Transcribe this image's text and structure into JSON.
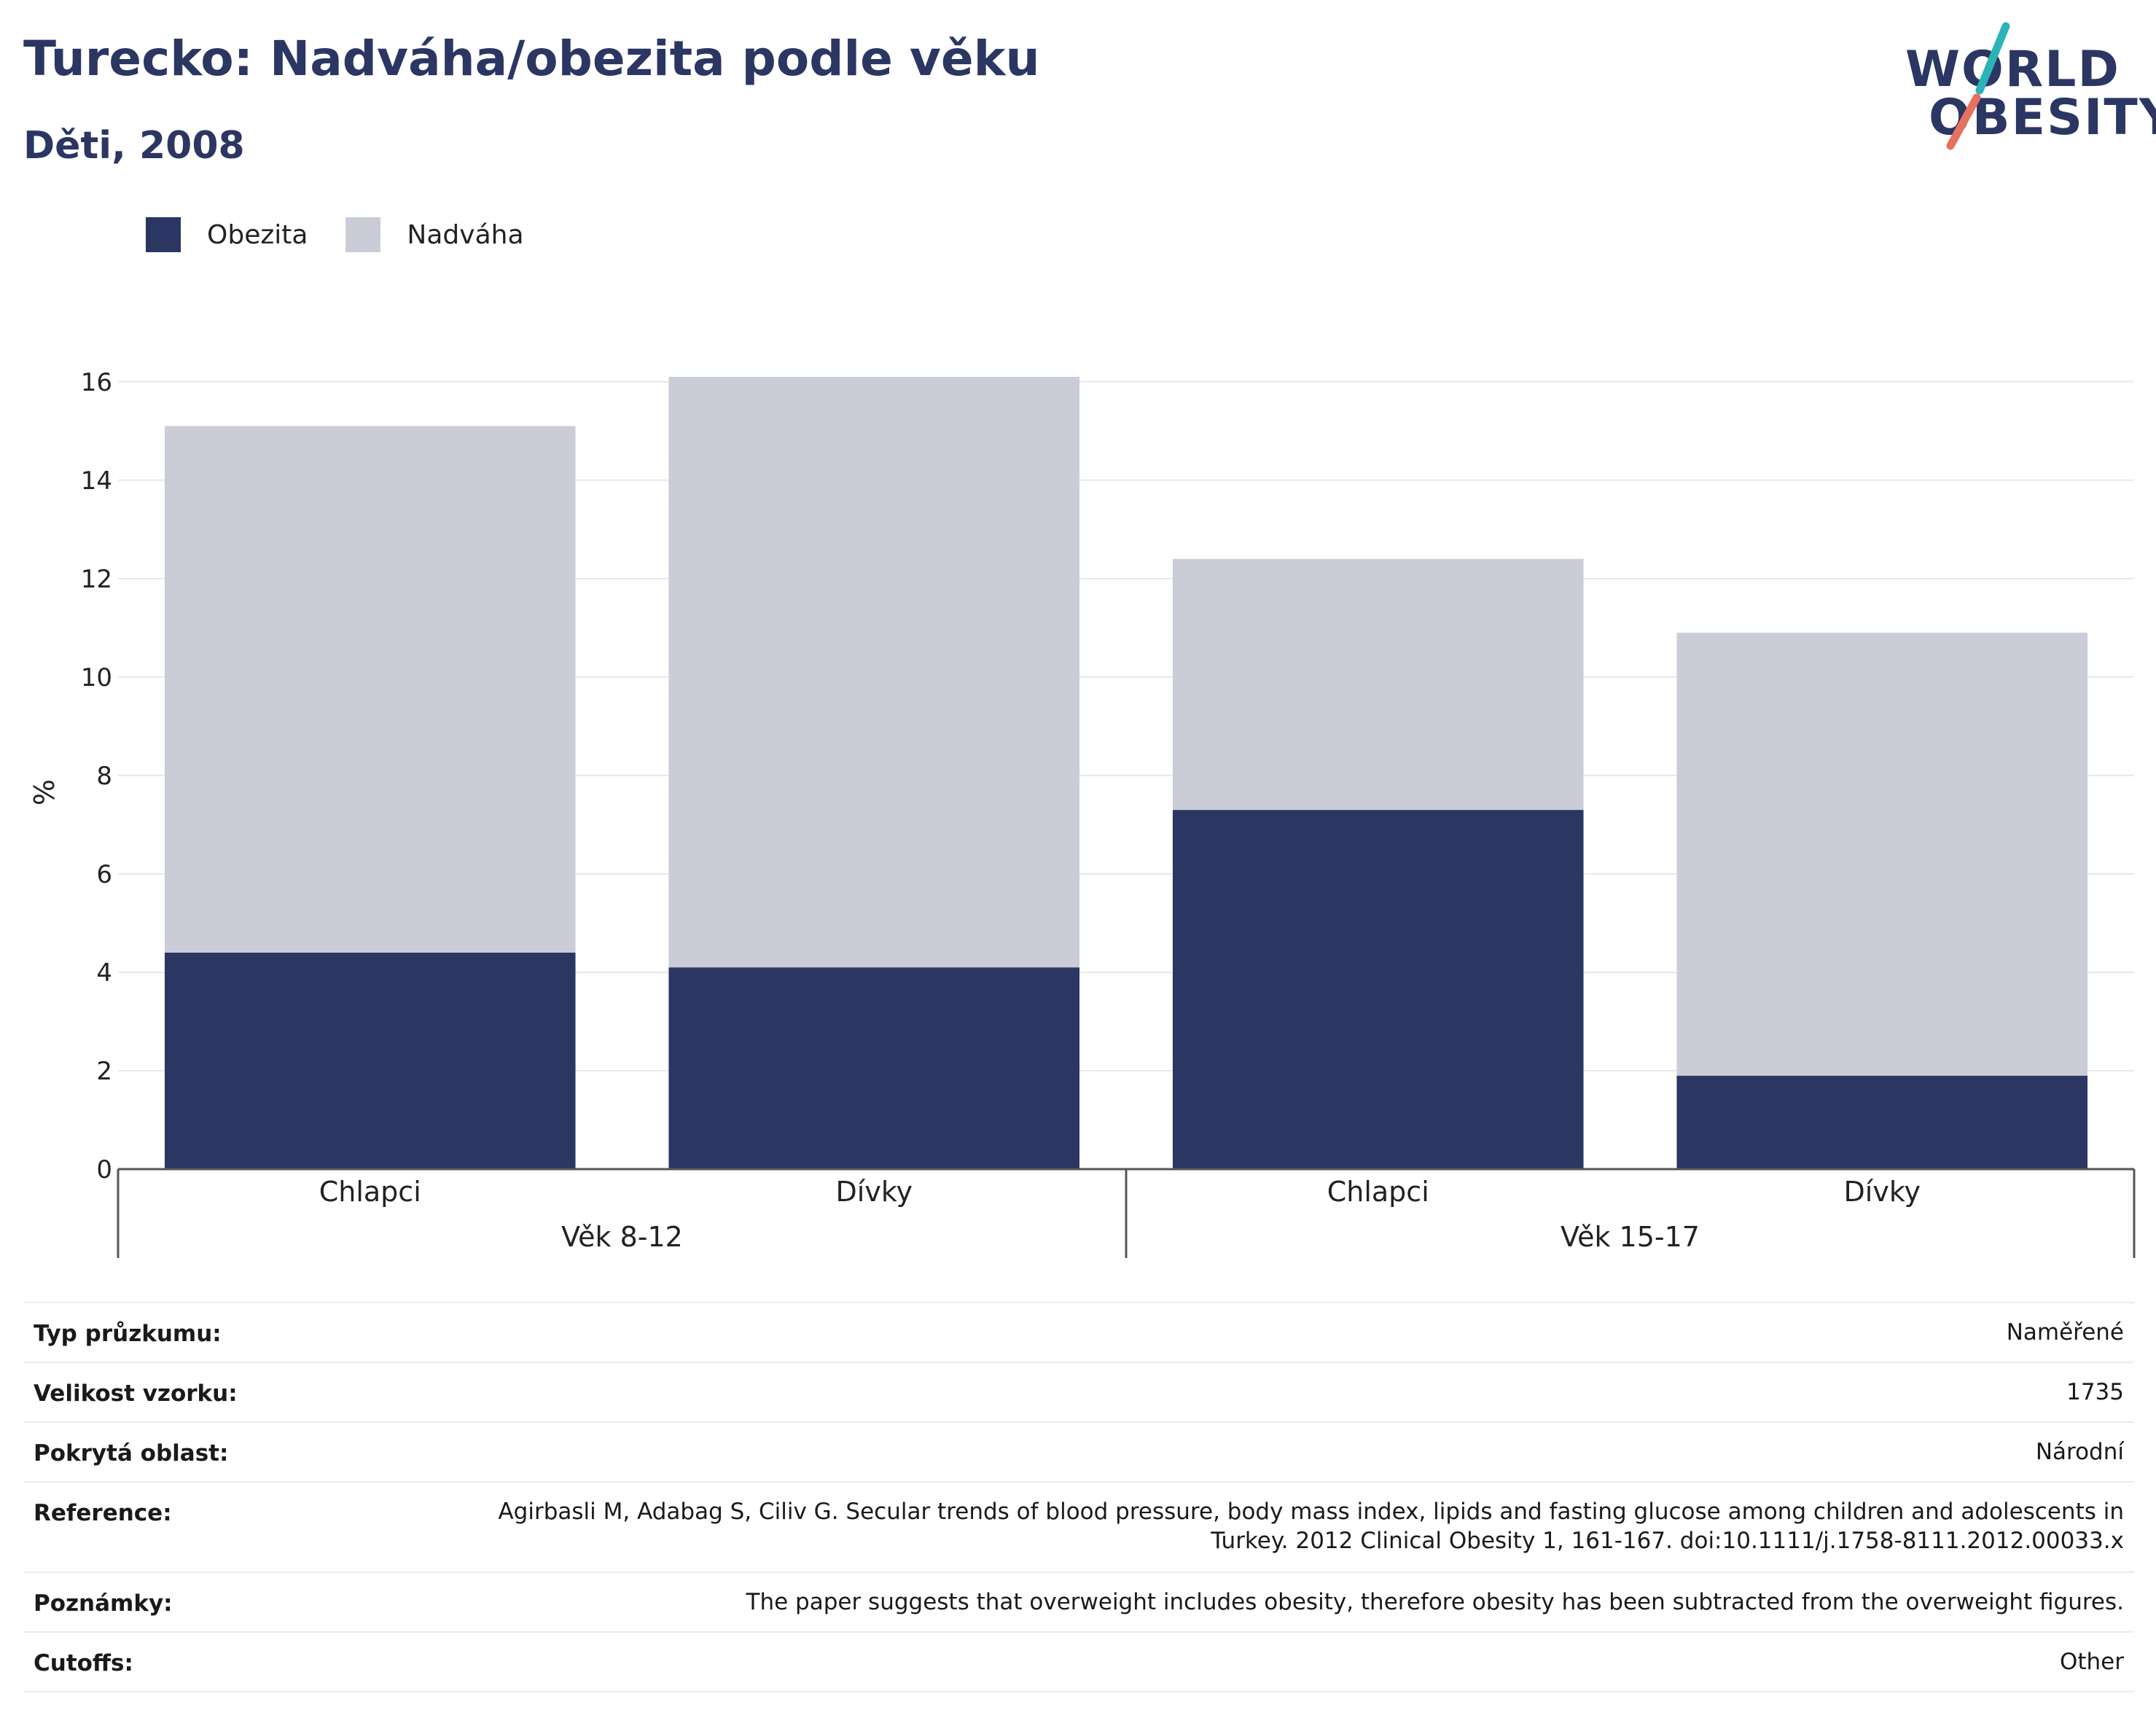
{
  "header": {
    "title": "Turecko: Nadváha/obezita podle věku",
    "subtitle": "Děti, 2008"
  },
  "logo": {
    "line1": "WORLD",
    "line2": "OBESITY",
    "colors": {
      "text": "#2b3663",
      "stroke_top": "#2bb3b8",
      "stroke_bottom": "#e8705f"
    }
  },
  "chart_data": {
    "type": "bar",
    "stacked": true,
    "title": "",
    "ylabel": "%",
    "ylim": [
      0,
      16.5
    ],
    "yticks": [
      0,
      2,
      4,
      6,
      8,
      10,
      12,
      14,
      16
    ],
    "grid": true,
    "legend_position": "top-left",
    "categories": [
      "Chlapci",
      "Dívky",
      "Chlapci",
      "Dívky"
    ],
    "groups": [
      {
        "label": "Věk 8-12",
        "categories": [
          0,
          1
        ]
      },
      {
        "label": "Věk 15-17",
        "categories": [
          2,
          3
        ]
      }
    ],
    "series": [
      {
        "name": "Obezita",
        "color": "#2b3663",
        "values": [
          4.4,
          4.1,
          7.3,
          1.9
        ]
      },
      {
        "name": "Nadváha",
        "color": "#cacdd8",
        "values": [
          10.7,
          12.0,
          5.1,
          9.0
        ]
      }
    ]
  },
  "info": [
    {
      "label": "Typ průzkumu:",
      "value": "Naměřené"
    },
    {
      "label": "Velikost vzorku:",
      "value": "1735"
    },
    {
      "label": "Pokrytá oblast:",
      "value": "Národní"
    },
    {
      "label": "Reference:",
      "value": "Agirbasli M, Adabag S, Ciliv G. Secular trends of blood pressure, body mass index, lipids and fasting glucose among children and adolescents in Turkey. 2012 Clinical Obesity 1, 161-167. doi:10.1111/j.1758-8111.2012.00033.x"
    },
    {
      "label": "Poznámky:",
      "value": "The paper suggests that overweight includes obesity, therefore obesity has been subtracted from the overweight figures."
    },
    {
      "label": "Cutoffs:",
      "value": "Other"
    }
  ]
}
